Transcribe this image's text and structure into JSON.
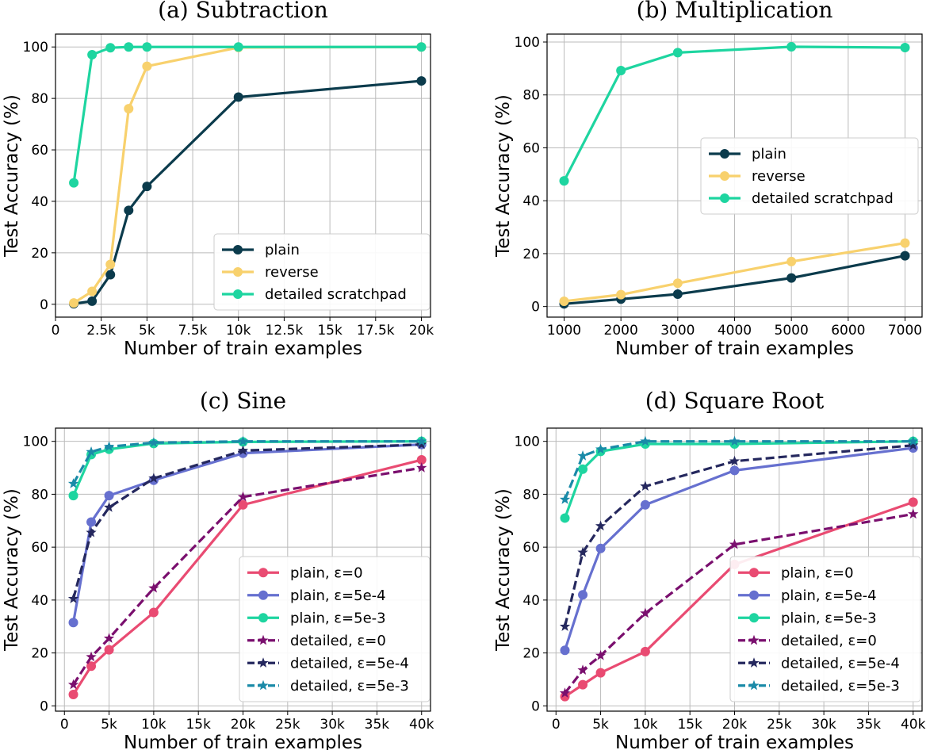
{
  "chart_data": [
    {
      "type": "line",
      "title": "(a) Subtraction",
      "xlabel": "Number of train examples",
      "ylabel": "Test Accuracy (%)",
      "xlim": [
        0,
        20500
      ],
      "ylim": [
        -5,
        105
      ],
      "xticks": [
        0,
        2500,
        5000,
        7500,
        10000,
        12500,
        15000,
        17500,
        20000
      ],
      "xticklabels": [
        "0",
        "2.5k",
        "5k",
        "7.5k",
        "10k",
        "12.5k",
        "15k",
        "17.5k",
        "20k"
      ],
      "yticks": [
        0,
        20,
        40,
        60,
        80,
        100
      ],
      "yticklabels": [
        "0",
        "20",
        "40",
        "60",
        "80",
        "100"
      ],
      "legend_position": "lower-right",
      "series": [
        {
          "name": "plain",
          "color": "#0b3b4c",
          "marker": "circle",
          "dashed": false,
          "x": [
            1000,
            2000,
            3000,
            4000,
            5000,
            10000,
            20000
          ],
          "y": [
            0.2,
            1.2,
            11.5,
            36.5,
            45.8,
            80.5,
            86.8
          ]
        },
        {
          "name": "reverse",
          "color": "#f8d16d",
          "marker": "circle",
          "dashed": false,
          "x": [
            1000,
            2000,
            3000,
            4000,
            5000,
            10000,
            20000
          ],
          "y": [
            0.5,
            5.0,
            15.5,
            76.0,
            92.5,
            99.8,
            100
          ]
        },
        {
          "name": "detailed scratchpad",
          "color": "#1ed5a0",
          "marker": "circle",
          "dashed": false,
          "x": [
            1000,
            2000,
            3000,
            4000,
            5000,
            10000,
            20000
          ],
          "y": [
            47.2,
            97.0,
            99.7,
            100,
            100,
            100,
            100
          ]
        }
      ]
    },
    {
      "type": "line",
      "title": "(b) Multiplication",
      "xlabel": "Number of train examples",
      "ylabel": "Test Accuracy (%)",
      "xlim": [
        700,
        7300
      ],
      "ylim": [
        -4,
        103
      ],
      "xticks": [
        1000,
        2000,
        3000,
        4000,
        5000,
        6000,
        7000
      ],
      "xticklabels": [
        "1000",
        "2000",
        "3000",
        "4000",
        "5000",
        "6000",
        "7000"
      ],
      "yticks": [
        0,
        20,
        40,
        60,
        80,
        100
      ],
      "yticklabels": [
        "0",
        "20",
        "40",
        "60",
        "80",
        "100"
      ],
      "legend_position": "center-right",
      "series": [
        {
          "name": "plain",
          "color": "#0b3b4c",
          "marker": "circle",
          "dashed": false,
          "x": [
            1000,
            2000,
            3000,
            5000,
            7000
          ],
          "y": [
            1.0,
            2.8,
            4.7,
            10.8,
            19.2
          ]
        },
        {
          "name": "reverse",
          "color": "#f8d16d",
          "marker": "circle",
          "dashed": false,
          "x": [
            1000,
            2000,
            3000,
            5000,
            7000
          ],
          "y": [
            2.0,
            4.5,
            8.8,
            17.0,
            24.0
          ]
        },
        {
          "name": "detailed scratchpad",
          "color": "#1ed5a0",
          "marker": "circle",
          "dashed": false,
          "x": [
            1000,
            2000,
            3000,
            5000,
            7000
          ],
          "y": [
            47.5,
            89.2,
            96.0,
            98.2,
            97.9
          ]
        }
      ]
    },
    {
      "type": "line",
      "title": "(c) Sine",
      "xlabel": "Number of train examples",
      "ylabel": "Test Accuracy (%)",
      "xlim": [
        -1000,
        41000
      ],
      "ylim": [
        -2,
        105
      ],
      "xticks": [
        0,
        5000,
        10000,
        15000,
        20000,
        25000,
        30000,
        35000,
        40000
      ],
      "xticklabels": [
        "0",
        "5k",
        "10k",
        "15k",
        "20k",
        "25k",
        "30k",
        "35k",
        "40k"
      ],
      "yticks": [
        0,
        20,
        40,
        60,
        80,
        100
      ],
      "yticklabels": [
        "0",
        "20",
        "40",
        "60",
        "80",
        "100"
      ],
      "legend_position": "lower-right",
      "series": [
        {
          "name": "plain, ε=0",
          "color": "#e94b72",
          "marker": "circle",
          "dashed": false,
          "x": [
            1000,
            3000,
            5000,
            10000,
            20000,
            40000
          ],
          "y": [
            4.3,
            15.0,
            21.2,
            35.3,
            76.0,
            93.0
          ]
        },
        {
          "name": "plain, ε=5e-4",
          "color": "#6670cf",
          "marker": "circle",
          "dashed": false,
          "x": [
            1000,
            3000,
            5000,
            10000,
            20000,
            40000
          ],
          "y": [
            31.5,
            69.5,
            79.5,
            85.3,
            95.5,
            98.8
          ]
        },
        {
          "name": "plain, ε=5e-3",
          "color": "#1ed5a0",
          "marker": "circle",
          "dashed": false,
          "x": [
            1000,
            3000,
            5000,
            10000,
            20000,
            40000
          ],
          "y": [
            79.5,
            95.0,
            97.0,
            99.2,
            99.8,
            100
          ]
        },
        {
          "name": "detailed, ε=0",
          "color": "#7a0f6e",
          "marker": "star",
          "dashed": true,
          "x": [
            1000,
            3000,
            5000,
            10000,
            20000,
            40000
          ],
          "y": [
            8.0,
            18.5,
            25.5,
            44.5,
            79.0,
            90.0
          ]
        },
        {
          "name": "detailed, ε=5e-4",
          "color": "#25285e",
          "marker": "star",
          "dashed": true,
          "x": [
            1000,
            3000,
            5000,
            10000,
            20000,
            40000
          ],
          "y": [
            40.5,
            65.5,
            75.0,
            86.0,
            96.5,
            98.8
          ]
        },
        {
          "name": "detailed, ε=5e-3",
          "color": "#1a8aa8",
          "marker": "star",
          "dashed": true,
          "x": [
            1000,
            3000,
            5000,
            10000,
            20000,
            40000
          ],
          "y": [
            84.0,
            96.0,
            98.0,
            99.5,
            100,
            100
          ]
        }
      ]
    },
    {
      "type": "line",
      "title": "(d) Square Root",
      "xlabel": "Number of train examples",
      "ylabel": "Test Accuracy (%)",
      "xlim": [
        -1000,
        41000
      ],
      "ylim": [
        -2,
        105
      ],
      "xticks": [
        0,
        5000,
        10000,
        15000,
        20000,
        25000,
        30000,
        35000,
        40000
      ],
      "xticklabels": [
        "0",
        "5k",
        "10k",
        "15k",
        "20k",
        "25k",
        "30k",
        "35k",
        "40k"
      ],
      "yticks": [
        0,
        20,
        40,
        60,
        80,
        100
      ],
      "yticklabels": [
        "0",
        "20",
        "40",
        "60",
        "80",
        "100"
      ],
      "legend_position": "lower-right",
      "series": [
        {
          "name": "plain, ε=0",
          "color": "#e94b72",
          "marker": "circle",
          "dashed": false,
          "x": [
            1000,
            3000,
            5000,
            10000,
            20000,
            40000
          ],
          "y": [
            3.5,
            8.0,
            12.5,
            20.5,
            53.5,
            77.0
          ]
        },
        {
          "name": "plain, ε=5e-4",
          "color": "#6670cf",
          "marker": "circle",
          "dashed": false,
          "x": [
            1000,
            3000,
            5000,
            10000,
            20000,
            40000
          ],
          "y": [
            21.0,
            42.0,
            59.5,
            76.0,
            89.0,
            97.5
          ]
        },
        {
          "name": "plain, ε=5e-3",
          "color": "#1ed5a0",
          "marker": "circle",
          "dashed": false,
          "x": [
            1000,
            3000,
            5000,
            10000,
            20000,
            40000
          ],
          "y": [
            71.0,
            89.5,
            96.2,
            99.0,
            99.0,
            100
          ]
        },
        {
          "name": "detailed, ε=0",
          "color": "#7a0f6e",
          "marker": "star",
          "dashed": true,
          "x": [
            1000,
            3000,
            5000,
            10000,
            20000,
            40000
          ],
          "y": [
            4.8,
            13.5,
            19.0,
            35.0,
            61.0,
            72.5
          ]
        },
        {
          "name": "detailed, ε=5e-4",
          "color": "#25285e",
          "marker": "star",
          "dashed": true,
          "x": [
            1000,
            3000,
            5000,
            10000,
            20000,
            40000
          ],
          "y": [
            30.0,
            58.0,
            68.0,
            83.0,
            92.5,
            98.5
          ]
        },
        {
          "name": "detailed, ε=5e-3",
          "color": "#1a8aa8",
          "marker": "star",
          "dashed": true,
          "x": [
            1000,
            3000,
            5000,
            10000,
            20000,
            40000
          ],
          "y": [
            78.0,
            94.5,
            97.0,
            100,
            100,
            100
          ]
        }
      ]
    }
  ]
}
